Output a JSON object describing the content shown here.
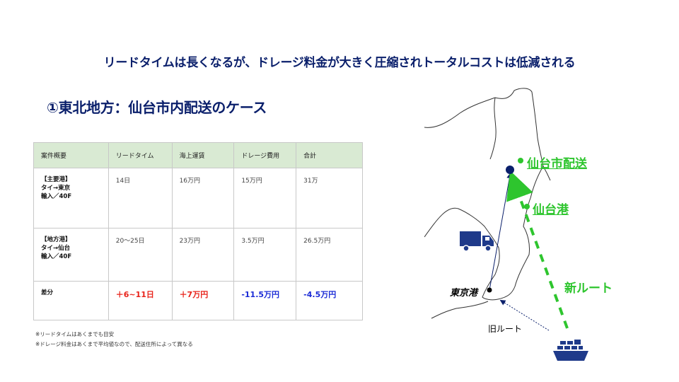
{
  "headline": "リードタイムは長くなるが、ドレージ料金が大きく圧縮されトータルコストは低減される",
  "case_title": "①東北地方：仙台市内配送のケース",
  "table": {
    "headers": [
      "案件概要",
      "リードタイム",
      "海上運賃",
      "ドレージ費用",
      "合計"
    ],
    "rows": [
      {
        "summary": [
          "【主要港】",
          "タイ→東京",
          "輸入／40F"
        ],
        "lead_time": "14日",
        "ocean_freight": "16万円",
        "drayage": "15万円",
        "total": "31万"
      },
      {
        "summary": [
          "【地方港】",
          "タイ→仙台",
          "輸入／40F"
        ],
        "lead_time": "20～25日",
        "ocean_freight": "23万円",
        "drayage": "3.5万円",
        "total": "26.5万円"
      },
      {
        "summary": [
          "差分"
        ],
        "lead_time": "＋6~11日",
        "ocean_freight": "＋7万円",
        "drayage": "-11.5万円",
        "total": "-4.5万円"
      }
    ]
  },
  "notes": [
    "※リードタイムはあくまでも目安",
    "※ドレージ料金はあくまで平均値なので、配送住所によって異なる"
  ],
  "map": {
    "sendai_delivery": "仙台市配送",
    "sendai_port": "仙台港",
    "new_route": "新ルート",
    "tokyo_port": "東京港",
    "old_route": "旧ルート",
    "colors": {
      "new_route": "#2ec52e",
      "old_route": "#0a1f6b",
      "truck": "#1f3a8a",
      "ship": "#1f3a8a"
    },
    "icons": [
      "truck-icon",
      "ship-icon"
    ]
  }
}
